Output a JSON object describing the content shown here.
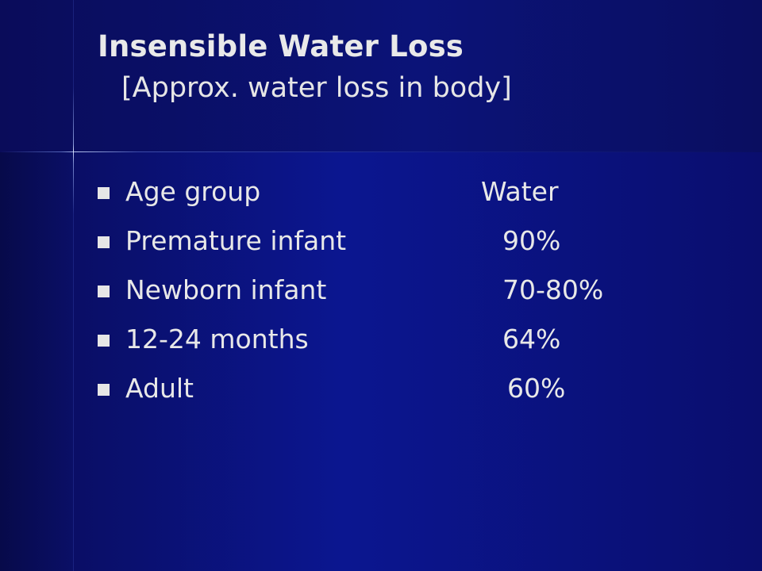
{
  "slide": {
    "title": "Insensible Water Loss",
    "subtitle": "[Approx. water loss in body]",
    "rows": [
      {
        "label": "Age group",
        "value": "Water"
      },
      {
        "label": "Premature infant",
        "value": "90%"
      },
      {
        "label": "Newborn infant",
        "value": "70-80%"
      },
      {
        "label": "12-24 months",
        "value": "64%"
      },
      {
        "label": "Adult",
        "value": "60%"
      }
    ]
  },
  "colors": {
    "background": "#0b1690",
    "text": "#e8e8e8",
    "bullet": "#e6e6e6"
  }
}
